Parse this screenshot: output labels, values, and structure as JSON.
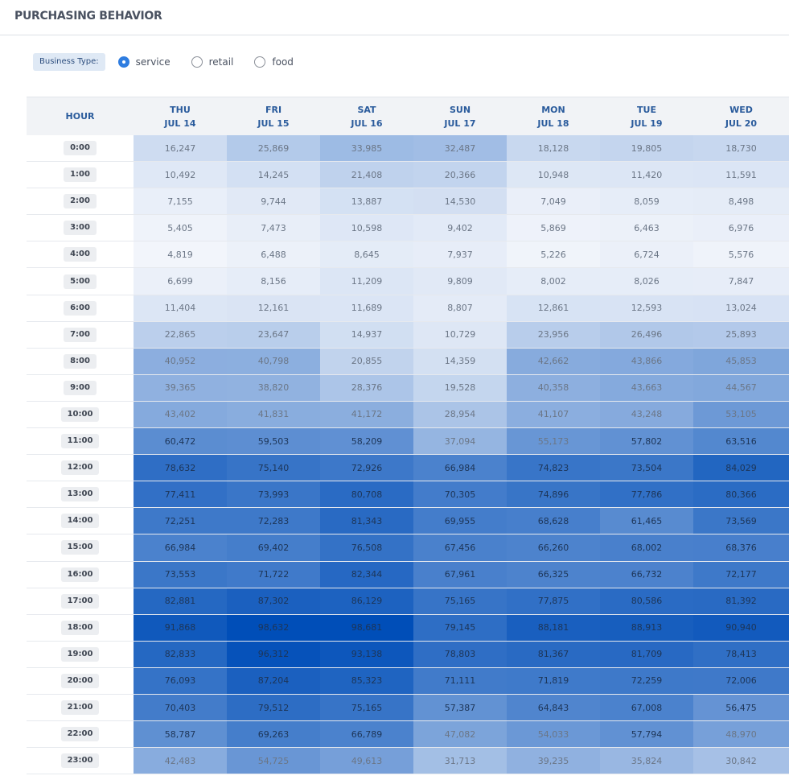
{
  "header": {
    "title": "PURCHASING BEHAVIOR"
  },
  "filter": {
    "label": "Business Type:",
    "options": [
      {
        "label": "service",
        "checked": true
      },
      {
        "label": "retail",
        "checked": false
      },
      {
        "label": "food",
        "checked": false
      }
    ]
  },
  "colors": {
    "low": "#f2f5fb",
    "high": "#004eb8",
    "accent": "#2f7de0"
  },
  "chart_data": {
    "type": "heatmap",
    "row_header": "HOUR",
    "columns": [
      {
        "day": "THU",
        "date": "JUL 14"
      },
      {
        "day": "FRI",
        "date": "JUL 15"
      },
      {
        "day": "SAT",
        "date": "JUL 16"
      },
      {
        "day": "SUN",
        "date": "JUL 17"
      },
      {
        "day": "MON",
        "date": "JUL 18"
      },
      {
        "day": "TUE",
        "date": "JUL 19"
      },
      {
        "day": "WED",
        "date": "JUL 20"
      }
    ],
    "rows": [
      {
        "hour": "0:00",
        "values": [
          16247,
          25869,
          33985,
          32487,
          18128,
          19805,
          18730
        ]
      },
      {
        "hour": "1:00",
        "values": [
          10492,
          14245,
          21408,
          20366,
          10948,
          11420,
          11591
        ]
      },
      {
        "hour": "2:00",
        "values": [
          7155,
          9744,
          13887,
          14530,
          7049,
          8059,
          8498
        ]
      },
      {
        "hour": "3:00",
        "values": [
          5405,
          7473,
          10598,
          9402,
          5869,
          6463,
          6976
        ]
      },
      {
        "hour": "4:00",
        "values": [
          4819,
          6488,
          8645,
          7937,
          5226,
          6724,
          5576
        ]
      },
      {
        "hour": "5:00",
        "values": [
          6699,
          8156,
          11209,
          9809,
          8002,
          8026,
          7847
        ]
      },
      {
        "hour": "6:00",
        "values": [
          11404,
          12161,
          11689,
          8807,
          12861,
          12593,
          13024
        ]
      },
      {
        "hour": "7:00",
        "values": [
          22865,
          23647,
          14937,
          10729,
          23956,
          26496,
          25893
        ]
      },
      {
        "hour": "8:00",
        "values": [
          40952,
          40798,
          20855,
          14359,
          42662,
          43866,
          45853
        ]
      },
      {
        "hour": "9:00",
        "values": [
          39365,
          38820,
          28376,
          19528,
          40358,
          43663,
          44567
        ]
      },
      {
        "hour": "10:00",
        "values": [
          43402,
          41831,
          41172,
          28954,
          41107,
          43248,
          53105
        ]
      },
      {
        "hour": "11:00",
        "values": [
          60472,
          59503,
          58209,
          37094,
          55173,
          57802,
          63516
        ]
      },
      {
        "hour": "12:00",
        "values": [
          78632,
          75140,
          72926,
          66984,
          74823,
          73504,
          84029
        ]
      },
      {
        "hour": "13:00",
        "values": [
          77411,
          73993,
          80708,
          70305,
          74896,
          77786,
          80366
        ]
      },
      {
        "hour": "14:00",
        "values": [
          72251,
          72283,
          81343,
          69955,
          68628,
          61465,
          73569
        ]
      },
      {
        "hour": "15:00",
        "values": [
          66984,
          69402,
          76508,
          67456,
          66260,
          68002,
          68376
        ]
      },
      {
        "hour": "16:00",
        "values": [
          73553,
          71722,
          82344,
          67961,
          66325,
          66732,
          72177
        ]
      },
      {
        "hour": "17:00",
        "values": [
          82881,
          87302,
          86129,
          75165,
          77875,
          80586,
          81392
        ]
      },
      {
        "hour": "18:00",
        "values": [
          91868,
          98632,
          98681,
          79145,
          88181,
          88913,
          90940
        ]
      },
      {
        "hour": "19:00",
        "values": [
          82833,
          96312,
          93138,
          78803,
          81367,
          81709,
          78413
        ]
      },
      {
        "hour": "20:00",
        "values": [
          76093,
          87204,
          85323,
          71111,
          71819,
          72259,
          72006
        ]
      },
      {
        "hour": "21:00",
        "values": [
          70403,
          79512,
          75165,
          57387,
          64843,
          67008,
          56475
        ]
      },
      {
        "hour": "22:00",
        "values": [
          58787,
          69263,
          66789,
          47082,
          54033,
          57794,
          48970
        ]
      },
      {
        "hour": "23:00",
        "values": [
          42483,
          54725,
          49613,
          31713,
          39235,
          35824,
          30842
        ]
      }
    ]
  }
}
